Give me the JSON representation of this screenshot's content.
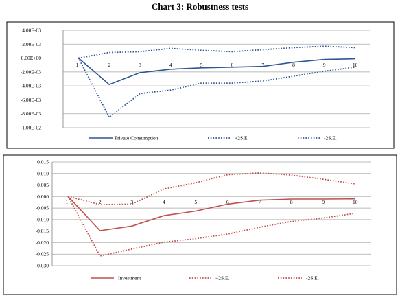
{
  "page_title": "Chart 3: Robustness tests",
  "chart_data": [
    {
      "type": "line",
      "categories": [
        "1",
        "2",
        "3",
        "4",
        "5",
        "6",
        "7",
        "8",
        "9",
        "10"
      ],
      "y_ticks": [
        "4.00E-03",
        "2.00E-03",
        "0.00E+00",
        "-2.00E-03",
        "-4.00E-03",
        "-6.00E-03",
        "-8.00E-03",
        "-1.00E-02"
      ],
      "ylim": [
        -0.01,
        0.004
      ],
      "grid": true,
      "legend_position": "bottom",
      "series": [
        {
          "name": "Private Consumption",
          "style": "solid",
          "color": "#2e5597",
          "values": [
            0,
            -0.0038,
            -0.0021,
            -0.0016,
            -0.0014,
            -0.0013,
            -0.0012,
            -0.0006,
            -0.0002,
            -0.0001
          ]
        },
        {
          "name": "+2S.E.",
          "style": "dotted",
          "color": "#2e5597",
          "values": [
            0,
            0.0008,
            0.0009,
            0.0014,
            0.0011,
            0.0009,
            0.0012,
            0.0015,
            0.0017,
            0.0015
          ]
        },
        {
          "name": "-2S.E.",
          "style": "dotted",
          "color": "#2e5597",
          "values": [
            0,
            -0.0085,
            -0.0051,
            -0.0046,
            -0.0036,
            -0.0036,
            -0.0033,
            -0.0026,
            -0.0019,
            -0.0013
          ]
        }
      ]
    },
    {
      "type": "line",
      "categories": [
        "1",
        "2",
        "3",
        "4",
        "5",
        "6",
        "7",
        "8",
        "9",
        "10"
      ],
      "y_ticks": [
        "0.015",
        "0.010",
        "0.005",
        "0.000",
        "-0.005",
        "-0.010",
        "-0.015",
        "-0.020",
        "-0.025",
        "-0.030"
      ],
      "ylim": [
        -0.03,
        0.015
      ],
      "grid": true,
      "legend_position": "bottom",
      "series": [
        {
          "name": "Investment",
          "style": "solid",
          "color": "#c0504d",
          "values": [
            0,
            -0.0148,
            -0.0128,
            -0.0083,
            -0.0063,
            -0.0033,
            -0.0016,
            -0.0011,
            -0.0011,
            -0.001
          ]
        },
        {
          "name": "+2S.E.",
          "style": "dotted",
          "color": "#c0504d",
          "values": [
            0,
            -0.0035,
            -0.0033,
            0.0033,
            0.006,
            0.0095,
            0.0103,
            0.0093,
            0.0075,
            0.0055
          ]
        },
        {
          "name": "-2S.E.",
          "style": "dotted",
          "color": "#c0504d",
          "values": [
            0,
            -0.0258,
            -0.0228,
            -0.0198,
            -0.0183,
            -0.0163,
            -0.0133,
            -0.0108,
            -0.0093,
            -0.0073
          ]
        }
      ]
    }
  ]
}
